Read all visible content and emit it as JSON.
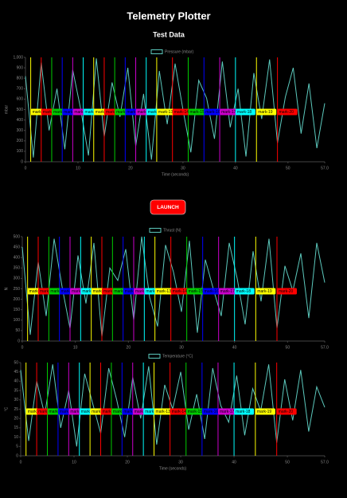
{
  "header": {
    "title": "Telemetry Plotter",
    "subtitle": "Test Data"
  },
  "button": {
    "label": "LAUNCH"
  },
  "markers": [
    {
      "label": "mark-1",
      "x": 1,
      "color": "#ffff00"
    },
    {
      "label": "mark-2",
      "x": 3,
      "color": "#ff0000"
    },
    {
      "label": "mark-3",
      "x": 5,
      "color": "#00cc00"
    },
    {
      "label": "mark-4",
      "x": 7,
      "color": "#0000ff"
    },
    {
      "label": "mark-5",
      "x": 9,
      "color": "#cc00cc"
    },
    {
      "label": "mark-6",
      "x": 11,
      "color": "#00ffff"
    },
    {
      "label": "mark-7",
      "x": 13,
      "color": "#ffff00"
    },
    {
      "label": "mark-8",
      "x": 15,
      "color": "#ff0000"
    },
    {
      "label": "mark-9",
      "x": 17,
      "color": "#00cc00"
    },
    {
      "label": "mark-10",
      "x": 19,
      "color": "#0000ff"
    },
    {
      "label": "mark-11",
      "x": 21,
      "color": "#cc00cc"
    },
    {
      "label": "mark-12",
      "x": 23,
      "color": "#00ffff"
    },
    {
      "label": "mark-13",
      "x": 25,
      "color": "#ffff00"
    },
    {
      "label": "mark-14",
      "x": 28,
      "color": "#ff0000"
    },
    {
      "label": "mark-15",
      "x": 31,
      "color": "#00cc00"
    },
    {
      "label": "mark-16",
      "x": 34,
      "color": "#0000ff"
    },
    {
      "label": "mark-17",
      "x": 37,
      "color": "#cc00cc"
    },
    {
      "label": "mark-18",
      "x": 40,
      "color": "#00ffff"
    },
    {
      "label": "mark-19",
      "x": 44,
      "color": "#ffff00"
    },
    {
      "label": "mark-20",
      "x": 48,
      "color": "#ff0000"
    }
  ],
  "chart_data": [
    {
      "type": "line",
      "ylabel": "mbar",
      "xlabel": "Time (seconds)",
      "xlim": [
        0,
        57
      ],
      "xticks": [
        0,
        10,
        20,
        30,
        40,
        50,
        {
          "value": 57,
          "label": "57.0"
        }
      ],
      "ylim": [
        0,
        1000
      ],
      "yticks": [
        0,
        100,
        200,
        300,
        400,
        500,
        600,
        700,
        800,
        900,
        {
          "value": 1000,
          "label": "1,000"
        }
      ],
      "x": [
        0,
        1.5,
        3,
        4.5,
        6,
        7.5,
        9,
        10.5,
        12,
        13.5,
        15,
        16.5,
        18,
        19.5,
        21,
        22.5,
        24,
        25.5,
        27,
        28.5,
        30,
        31.5,
        33,
        34.5,
        36,
        37.5,
        39,
        40.5,
        42,
        43.5,
        45,
        46.5,
        48,
        49.5,
        51,
        52.5,
        54,
        55.5,
        57
      ],
      "series": [
        {
          "name": "Pressure (mbar)",
          "color": "#5cc9bd",
          "values": [
            820,
            40,
            950,
            300,
            700,
            120,
            880,
            510,
            60,
            990,
            240,
            760,
            430,
            900,
            150,
            650,
            20,
            870,
            360,
            940,
            500,
            90,
            780,
            610,
            220,
            960,
            330,
            700,
            50,
            850,
            410,
            980,
            180,
            620,
            900,
            270,
            750,
            130,
            560
          ]
        }
      ]
    },
    {
      "type": "line",
      "ylabel": "N",
      "xlim": [
        0,
        57
      ],
      "xticks": [
        0,
        10,
        20,
        30,
        40,
        50,
        {
          "value": 57,
          "label": "57.0"
        }
      ],
      "ylim": [
        0,
        500
      ],
      "yticks": [
        0,
        50,
        100,
        150,
        200,
        250,
        300,
        350,
        400,
        450,
        500
      ],
      "x": [
        0,
        1.5,
        3,
        4.5,
        6,
        7.5,
        9,
        10.5,
        12,
        13.5,
        15,
        16.5,
        18,
        19.5,
        21,
        22.5,
        24,
        25.5,
        27,
        28.5,
        30,
        31.5,
        33,
        34.5,
        36,
        37.5,
        39,
        40.5,
        42,
        43.5,
        45,
        46.5,
        48,
        49.5,
        51,
        52.5,
        54,
        55.5,
        57
      ],
      "series": [
        {
          "name": "Thrust (N)",
          "color": "#5cc9bd",
          "values": [
            450,
            30,
            380,
            120,
            490,
            260,
            60,
            410,
            180,
            470,
            20,
            350,
            290,
            440,
            100,
            500,
            210,
            70,
            460,
            330,
            140,
            480,
            40,
            390,
            250,
            120,
            470,
            300,
            80,
            430,
            190,
            490,
            60,
            360,
            240,
            420,
            110,
            470,
            280
          ]
        }
      ]
    },
    {
      "type": "line",
      "ylabel": "°C",
      "xlabel": "Time (seconds)",
      "xlim": [
        0,
        57
      ],
      "xticks": [
        0,
        10,
        20,
        30,
        40,
        50,
        {
          "value": 57,
          "label": "57.0"
        }
      ],
      "ylim": [
        0,
        50
      ],
      "yticks": [
        0,
        5,
        10,
        15,
        20,
        25,
        30,
        35,
        40,
        45,
        50
      ],
      "x": [
        0,
        1.5,
        3,
        4.5,
        6,
        7.5,
        9,
        10.5,
        12,
        13.5,
        15,
        16.5,
        18,
        19.5,
        21,
        22.5,
        24,
        25.5,
        27,
        28.5,
        30,
        31.5,
        33,
        34.5,
        36,
        37.5,
        39,
        40.5,
        42,
        43.5,
        45,
        46.5,
        48,
        49.5,
        51,
        52.5,
        54,
        55.5,
        57
      ],
      "series": [
        {
          "name": "Temperature (°C)",
          "color": "#5cc9bd",
          "values": [
            46,
            8,
            40,
            22,
            49,
            15,
            35,
            5,
            44,
            28,
            12,
            47,
            30,
            10,
            42,
            20,
            48,
            6,
            38,
            25,
            45,
            14,
            33,
            9,
            47,
            27,
            18,
            43,
            11,
            36,
            24,
            49,
            7,
            41,
            19,
            46,
            13,
            37,
            26
          ]
        }
      ]
    }
  ]
}
